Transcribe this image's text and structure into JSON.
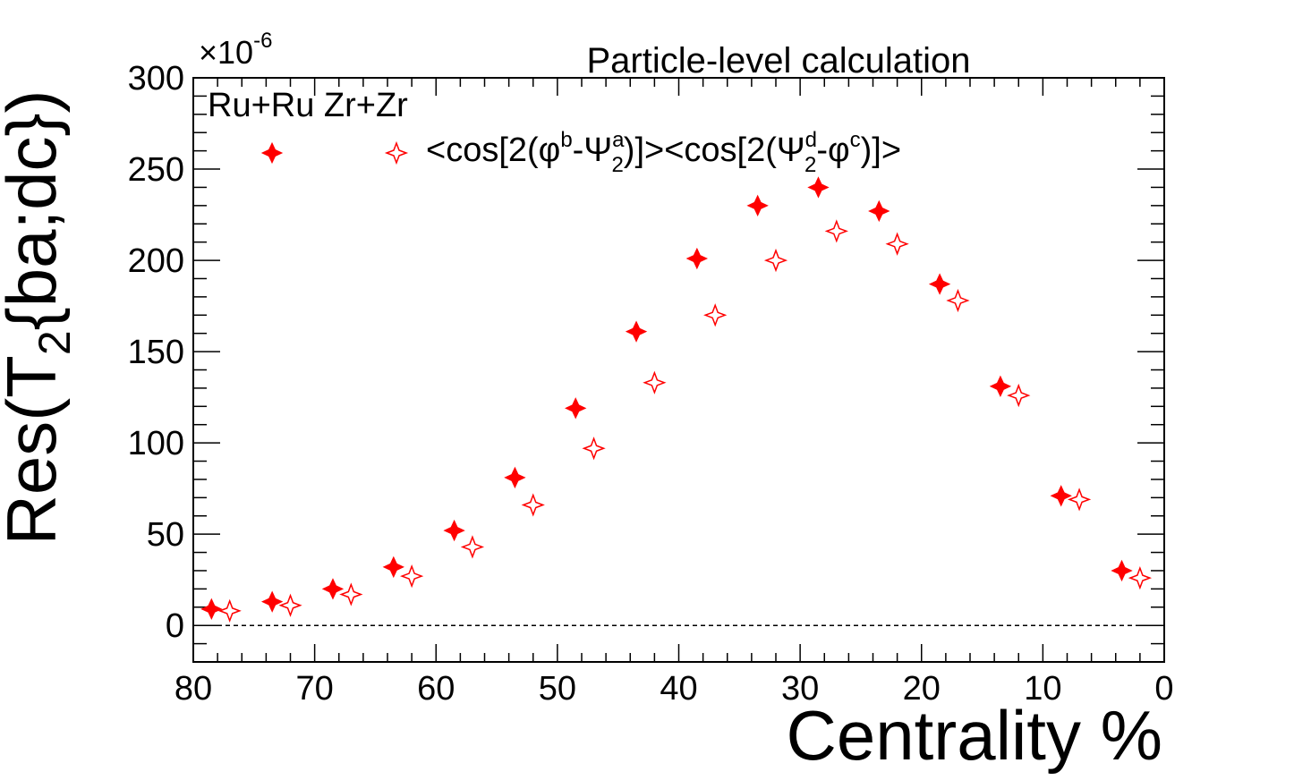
{
  "chart_data": {
    "type": "scatter",
    "title": "Particle-level calculation",
    "xlabel": "Centrality %",
    "ylabel_main": "Res(T",
    "ylabel_sub": "2",
    "ylabel_tail": "{ba;dc})",
    "y_multiplier_prefix": "×10",
    "y_multiplier_exp": "-6",
    "xlim": [
      80,
      0
    ],
    "x_reversed": true,
    "ylim": [
      -20,
      300
    ],
    "x_ticks": [
      80,
      70,
      60,
      50,
      40,
      30,
      20,
      10,
      0
    ],
    "y_ticks": [
      0,
      50,
      100,
      150,
      200,
      250,
      300
    ],
    "grid": false,
    "reference_line": {
      "y": 0,
      "style": "dashed"
    },
    "legend_position": "top-left",
    "legend_header": "Ru+Ru Zr+Zr",
    "legend_expression": {
      "p1": "<cos[2(φ",
      "p1_sup": "b",
      "p2": "-Ψ",
      "p2_sup": "a",
      "p2_sub": "2",
      "p3": ")]><cos[2(Ψ",
      "p3_sup": "d",
      "p3_sub": "2",
      "p4": "-φ",
      "p4_sup": "c",
      "p5": ")]>"
    },
    "colors": {
      "series": "#ff0000",
      "axis": "#000000"
    },
    "series": [
      {
        "marker": "filled-star",
        "x": [
          78.5,
          73.5,
          68.5,
          63.5,
          58.5,
          53.5,
          48.5,
          43.5,
          38.5,
          33.5,
          28.5,
          23.5,
          18.5,
          13.5,
          8.5,
          3.5
        ],
        "values": [
          9,
          13,
          20,
          32,
          52,
          81,
          119,
          161,
          201,
          230,
          240,
          227,
          187,
          131,
          71,
          30
        ]
      },
      {
        "marker": "open-star",
        "x": [
          77,
          72,
          67,
          62,
          57,
          52,
          47,
          42,
          37,
          32,
          27,
          22,
          17,
          12,
          7,
          2
        ],
        "values": [
          8,
          11,
          17,
          27,
          43,
          66,
          97,
          133,
          170,
          200,
          216,
          209,
          178,
          126,
          69,
          26
        ]
      }
    ]
  }
}
